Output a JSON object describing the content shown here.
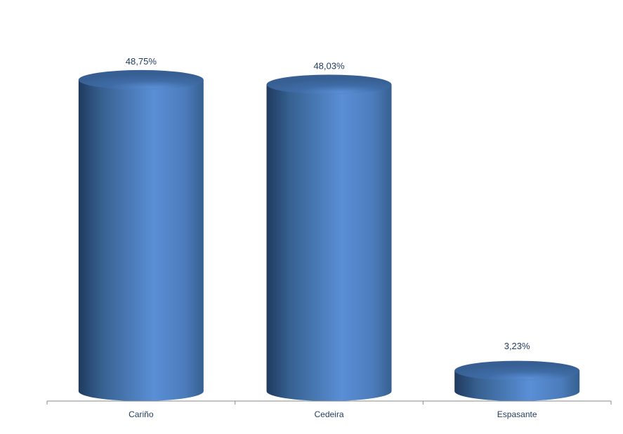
{
  "chart_data": {
    "type": "bar",
    "style": "3d-cylinder",
    "categories": [
      "Cariño",
      "Cedeira",
      "Espasante"
    ],
    "values": [
      48.75,
      48.03,
      3.23
    ],
    "data_labels": [
      "48,75%",
      "48,03%",
      "3,23%"
    ],
    "title": "",
    "xlabel": "",
    "ylabel": "",
    "ylim": [
      0,
      55
    ],
    "grid": false,
    "legend": "none",
    "colors": {
      "bar": "#4f81bd",
      "bar_dark": "#1f3a5f",
      "bar_light": "#5a8fd6",
      "top": "#3d6aa3",
      "axis": "#888888",
      "text": "#1f3a5f"
    }
  }
}
